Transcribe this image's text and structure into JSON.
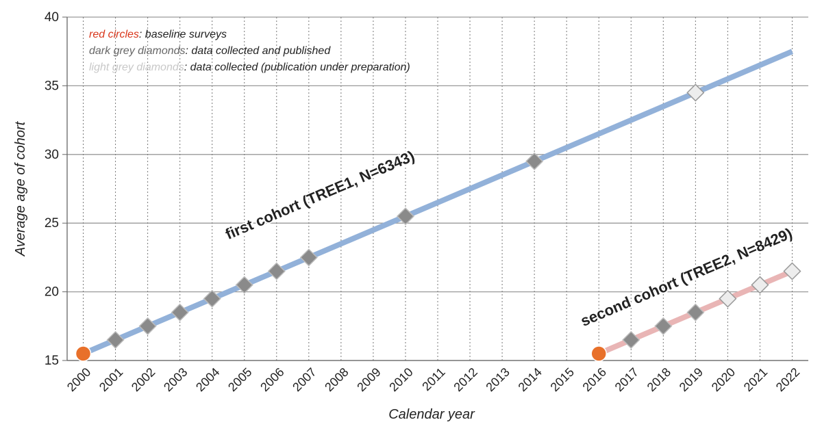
{
  "chart_data": {
    "type": "line",
    "x_label": "Calendar year",
    "y_label": "Average age of cohort",
    "xlim": [
      1999.5,
      2022.5
    ],
    "xticks": [
      2000,
      2001,
      2002,
      2003,
      2004,
      2005,
      2006,
      2007,
      2008,
      2009,
      2010,
      2011,
      2012,
      2013,
      2014,
      2015,
      2016,
      2017,
      2018,
      2019,
      2020,
      2021,
      2022
    ],
    "ylim": [
      15,
      40
    ],
    "yticks": [
      15,
      20,
      25,
      30,
      35,
      40
    ],
    "grid": true,
    "series": [
      {
        "name": "first cohort (TREE1, N=6343)",
        "color": "#92b1d9",
        "x": [
          2000,
          2022
        ],
        "values": [
          15.5,
          37.5
        ]
      },
      {
        "name": "second cohort (TREE2, N=8429)",
        "color": "#e9b5b5",
        "x": [
          2016,
          2022
        ],
        "values": [
          15.5,
          21.5
        ]
      }
    ],
    "markers": [
      {
        "key": "red circles",
        "description": ": baseline surveys",
        "shape": "circle",
        "color": "#e8702a",
        "x": [
          2000,
          2016
        ],
        "values": [
          15.5,
          15.5
        ]
      },
      {
        "key": "dark grey diamonds",
        "description": ": data collected and published",
        "shape": "diamond",
        "color": "#8a8a8a",
        "x": [
          2001,
          2002,
          2003,
          2004,
          2005,
          2006,
          2007,
          2010,
          2014,
          2017,
          2018,
          2019
        ],
        "values": [
          16.5,
          17.5,
          18.5,
          19.5,
          20.5,
          21.5,
          22.5,
          25.5,
          29.5,
          16.5,
          17.5,
          18.5
        ]
      },
      {
        "key": "light grey diamonds",
        "description": ": data collected (publication under preparation)",
        "shape": "diamond",
        "color": "#ededed",
        "x": [
          2019,
          2020,
          2021,
          2022
        ],
        "values": [
          34.5,
          19.5,
          20.5,
          21.5
        ]
      }
    ]
  }
}
